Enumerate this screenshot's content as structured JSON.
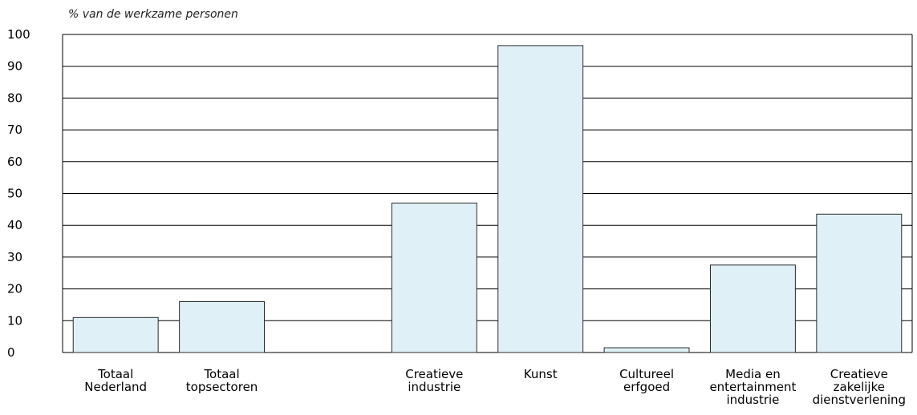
{
  "chart_data": {
    "type": "bar",
    "title": "",
    "xlabel": "",
    "ylabel": "% van de werkzame personen",
    "ylim": [
      0,
      100
    ],
    "yticks": [
      0,
      10,
      20,
      30,
      40,
      50,
      60,
      70,
      80,
      90,
      100
    ],
    "grid": true,
    "legend": "none",
    "bar_color": "#dff1f6",
    "bar_edge_color": "#2b2b2b",
    "categories": [
      {
        "label": [
          "Totaal",
          "Nederland"
        ],
        "value": 11
      },
      {
        "label": [
          "Totaal",
          "topsectoren"
        ],
        "value": 16
      },
      {
        "label": [],
        "value": null
      },
      {
        "label": [
          "Creatieve",
          "industrie"
        ],
        "value": 47
      },
      {
        "label": [
          "Kunst"
        ],
        "value": 96.5
      },
      {
        "label": [
          "Cultureel",
          "erfgoed"
        ],
        "value": 1.5
      },
      {
        "label": [
          "Media en",
          "entertainment",
          "industrie"
        ],
        "value": 27.5
      },
      {
        "label": [
          "Creatieve",
          "zakelijke",
          "dienstverlening"
        ],
        "value": 43.5
      }
    ]
  }
}
